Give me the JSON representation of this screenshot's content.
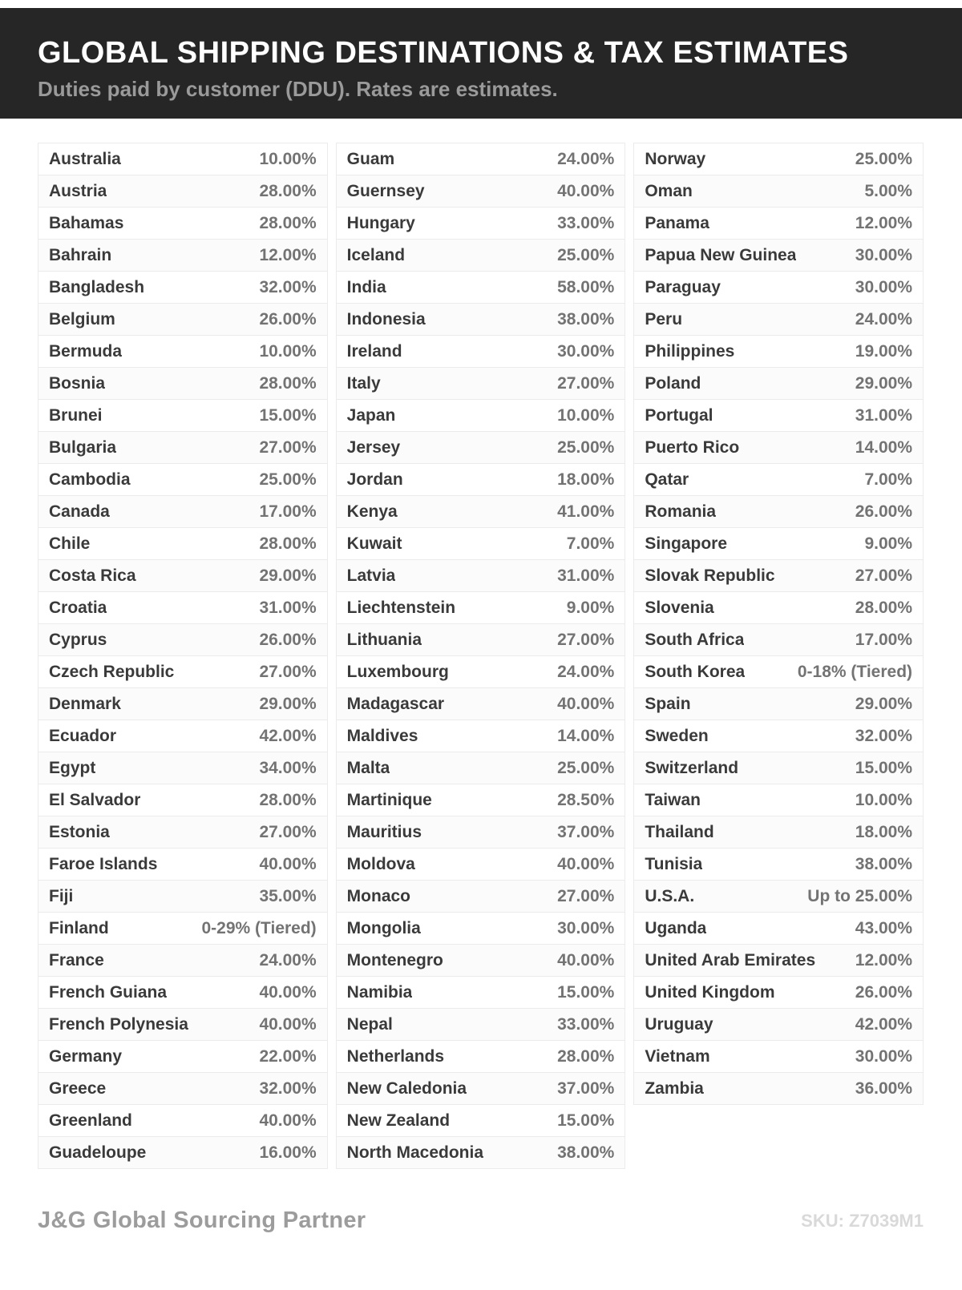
{
  "header": {
    "title": "GLOBAL SHIPPING DESTINATIONS & TAX ESTIMATES",
    "subtitle": "Duties paid by customer (DDU). Rates are estimates."
  },
  "table": {
    "columns": [
      {
        "rows": [
          {
            "country": "Australia",
            "rate": "10.00%"
          },
          {
            "country": "Austria",
            "rate": "28.00%"
          },
          {
            "country": "Bahamas",
            "rate": "28.00%"
          },
          {
            "country": "Bahrain",
            "rate": "12.00%"
          },
          {
            "country": "Bangladesh",
            "rate": "32.00%"
          },
          {
            "country": "Belgium",
            "rate": "26.00%"
          },
          {
            "country": "Bermuda",
            "rate": "10.00%"
          },
          {
            "country": "Bosnia",
            "rate": "28.00%"
          },
          {
            "country": "Brunei",
            "rate": "15.00%"
          },
          {
            "country": "Bulgaria",
            "rate": "27.00%"
          },
          {
            "country": "Cambodia",
            "rate": "25.00%"
          },
          {
            "country": "Canada",
            "rate": "17.00%"
          },
          {
            "country": "Chile",
            "rate": "28.00%"
          },
          {
            "country": "Costa Rica",
            "rate": "29.00%"
          },
          {
            "country": "Croatia",
            "rate": "31.00%"
          },
          {
            "country": "Cyprus",
            "rate": "26.00%"
          },
          {
            "country": "Czech Republic",
            "rate": "27.00%"
          },
          {
            "country": "Denmark",
            "rate": "29.00%"
          },
          {
            "country": "Ecuador",
            "rate": "42.00%"
          },
          {
            "country": "Egypt",
            "rate": "34.00%"
          },
          {
            "country": "El Salvador",
            "rate": "28.00%"
          },
          {
            "country": "Estonia",
            "rate": "27.00%"
          },
          {
            "country": "Faroe Islands",
            "rate": "40.00%"
          },
          {
            "country": "Fiji",
            "rate": "35.00%"
          },
          {
            "country": "Finland",
            "rate": "0-29% (Tiered)"
          },
          {
            "country": "France",
            "rate": "24.00%"
          },
          {
            "country": "French Guiana",
            "rate": "40.00%"
          },
          {
            "country": "French Polynesia",
            "rate": "40.00%"
          },
          {
            "country": "Germany",
            "rate": "22.00%"
          },
          {
            "country": "Greece",
            "rate": "32.00%"
          },
          {
            "country": "Greenland",
            "rate": "40.00%"
          },
          {
            "country": "Guadeloupe",
            "rate": "16.00%"
          }
        ]
      },
      {
        "rows": [
          {
            "country": "Guam",
            "rate": "24.00%"
          },
          {
            "country": "Guernsey",
            "rate": "40.00%"
          },
          {
            "country": "Hungary",
            "rate": "33.00%"
          },
          {
            "country": "Iceland",
            "rate": "25.00%"
          },
          {
            "country": "India",
            "rate": "58.00%"
          },
          {
            "country": "Indonesia",
            "rate": "38.00%"
          },
          {
            "country": "Ireland",
            "rate": "30.00%"
          },
          {
            "country": "Italy",
            "rate": "27.00%"
          },
          {
            "country": "Japan",
            "rate": "10.00%"
          },
          {
            "country": "Jersey",
            "rate": "25.00%"
          },
          {
            "country": "Jordan",
            "rate": "18.00%"
          },
          {
            "country": "Kenya",
            "rate": "41.00%"
          },
          {
            "country": "Kuwait",
            "rate": "7.00%"
          },
          {
            "country": "Latvia",
            "rate": "31.00%"
          },
          {
            "country": "Liechtenstein",
            "rate": "9.00%"
          },
          {
            "country": "Lithuania",
            "rate": "27.00%"
          },
          {
            "country": "Luxembourg",
            "rate": "24.00%"
          },
          {
            "country": "Madagascar",
            "rate": "40.00%"
          },
          {
            "country": "Maldives",
            "rate": "14.00%"
          },
          {
            "country": "Malta",
            "rate": "25.00%"
          },
          {
            "country": "Martinique",
            "rate": "28.50%"
          },
          {
            "country": "Mauritius",
            "rate": "37.00%"
          },
          {
            "country": "Moldova",
            "rate": "40.00%"
          },
          {
            "country": "Monaco",
            "rate": "27.00%"
          },
          {
            "country": "Mongolia",
            "rate": "30.00%"
          },
          {
            "country": "Montenegro",
            "rate": "40.00%"
          },
          {
            "country": "Namibia",
            "rate": "15.00%"
          },
          {
            "country": "Nepal",
            "rate": "33.00%"
          },
          {
            "country": "Netherlands",
            "rate": "28.00%"
          },
          {
            "country": "New Caledonia",
            "rate": "37.00%"
          },
          {
            "country": "New Zealand",
            "rate": "15.00%"
          },
          {
            "country": "North Macedonia",
            "rate": "38.00%"
          }
        ]
      },
      {
        "rows": [
          {
            "country": "Norway",
            "rate": "25.00%"
          },
          {
            "country": "Oman",
            "rate": "5.00%"
          },
          {
            "country": "Panama",
            "rate": "12.00%"
          },
          {
            "country": "Papua New Guinea",
            "rate": "30.00%"
          },
          {
            "country": "Paraguay",
            "rate": "30.00%"
          },
          {
            "country": "Peru",
            "rate": "24.00%"
          },
          {
            "country": "Philippines",
            "rate": "19.00%"
          },
          {
            "country": "Poland",
            "rate": "29.00%"
          },
          {
            "country": "Portugal",
            "rate": "31.00%"
          },
          {
            "country": "Puerto Rico",
            "rate": "14.00%"
          },
          {
            "country": "Qatar",
            "rate": "7.00%"
          },
          {
            "country": "Romania",
            "rate": "26.00%"
          },
          {
            "country": "Singapore",
            "rate": "9.00%"
          },
          {
            "country": "Slovak Republic",
            "rate": "27.00%"
          },
          {
            "country": "Slovenia",
            "rate": "28.00%"
          },
          {
            "country": "South Africa",
            "rate": "17.00%"
          },
          {
            "country": "South Korea",
            "rate": "0-18% (Tiered)"
          },
          {
            "country": "Spain",
            "rate": "29.00%"
          },
          {
            "country": "Sweden",
            "rate": "32.00%"
          },
          {
            "country": "Switzerland",
            "rate": "15.00%"
          },
          {
            "country": "Taiwan",
            "rate": "10.00%"
          },
          {
            "country": "Thailand",
            "rate": "18.00%"
          },
          {
            "country": "Tunisia",
            "rate": "38.00%"
          },
          {
            "country": "U.S.A.",
            "rate": "Up to 25.00%"
          },
          {
            "country": "Uganda",
            "rate": "43.00%"
          },
          {
            "country": "United Arab Emirates",
            "rate": "12.00%"
          },
          {
            "country": "United Kingdom",
            "rate": "26.00%"
          },
          {
            "country": "Uruguay",
            "rate": "42.00%"
          },
          {
            "country": "Vietnam",
            "rate": "30.00%"
          },
          {
            "country": "Zambia",
            "rate": "36.00%"
          }
        ]
      }
    ]
  },
  "footer": {
    "brand": "J&G Global Sourcing Partner",
    "sku": "SKU: Z7039M1"
  },
  "colors": {
    "header_background": "#262626",
    "title_text": "#ffffff",
    "subtitle_text": "#9a9a9a",
    "country_text": "#3a3a3a",
    "rate_text": "#737373",
    "row_border": "#ebebeb",
    "brand_text": "#9c9c9c",
    "sku_text": "#d9d9d9"
  }
}
